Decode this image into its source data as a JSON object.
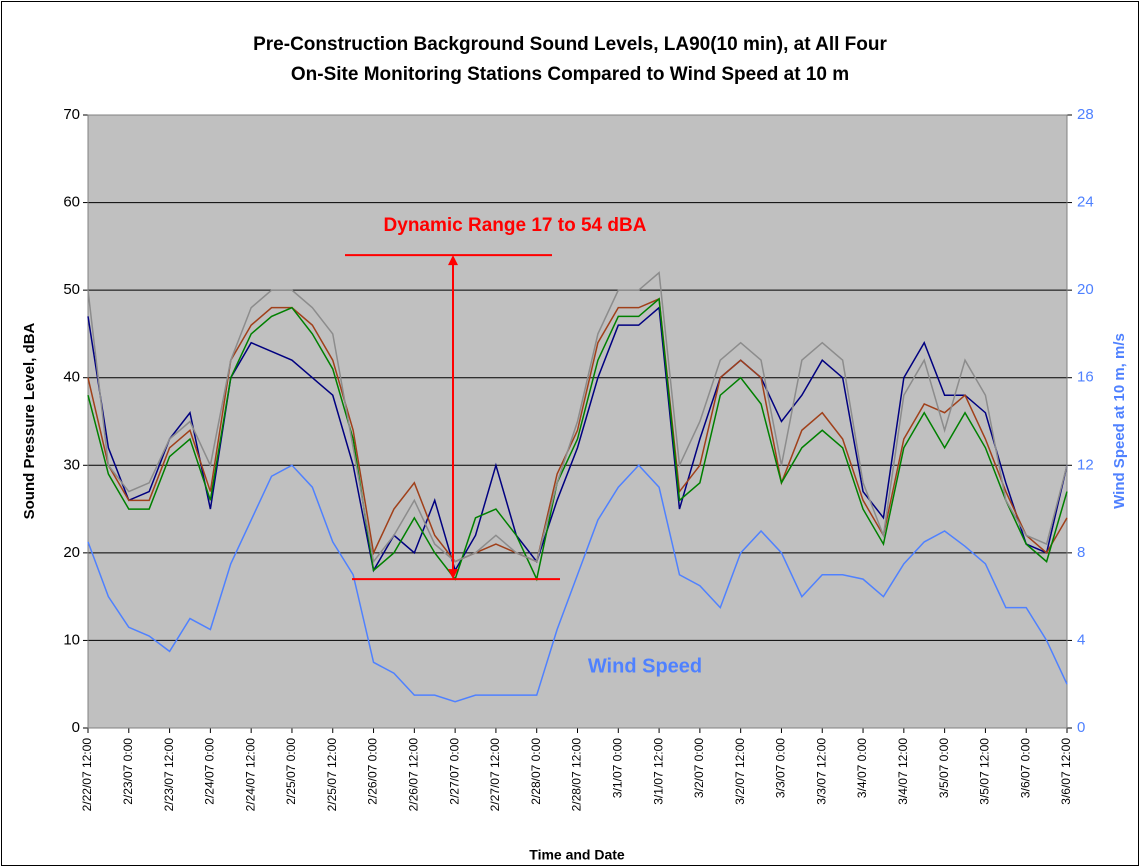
{
  "chart_data": {
    "type": "line",
    "title": [
      "Pre-Construction Background Sound Levels, LA90(10 min), at All Four",
      "On-Site Monitoring Stations Compared to Wind Speed at 10 m"
    ],
    "xlabel": "Time and Date",
    "ylabel": "Sound Pressure Level, dBA",
    "y2label": "Wind Speed at 10 m, m/s",
    "x": [
      "2/22/07 12:00",
      "2/22/07 18:00",
      "2/23/07 0:00",
      "2/23/07 6:00",
      "2/23/07 12:00",
      "2/23/07 18:00",
      "2/24/07 0:00",
      "2/24/07 6:00",
      "2/24/07 12:00",
      "2/24/07 18:00",
      "2/25/07 0:00",
      "2/25/07 6:00",
      "2/25/07 12:00",
      "2/25/07 18:00",
      "2/26/07 0:00",
      "2/26/07 6:00",
      "2/26/07 12:00",
      "2/26/07 18:00",
      "2/27/07 0:00",
      "2/27/07 6:00",
      "2/27/07 12:00",
      "2/27/07 18:00",
      "2/28/07 0:00",
      "2/28/07 6:00",
      "2/28/07 12:00",
      "2/28/07 18:00",
      "3/1/07 0:00",
      "3/1/07 6:00",
      "3/1/07 12:00",
      "3/1/07 18:00",
      "3/2/07 0:00",
      "3/2/07 6:00",
      "3/2/07 12:00",
      "3/2/07 18:00",
      "3/3/07 0:00",
      "3/3/07 6:00",
      "3/3/07 12:00",
      "3/3/07 18:00",
      "3/4/07 0:00",
      "3/4/07 6:00",
      "3/4/07 12:00",
      "3/4/07 18:00",
      "3/5/07 0:00",
      "3/5/07 6:00",
      "3/5/07 12:00",
      "3/5/07 18:00",
      "3/6/07 0:00",
      "3/6/07 6:00",
      "3/6/07 12:00"
    ],
    "xlim": [
      "2/22/07 12:00",
      "3/6/07 12:00"
    ],
    "xticks": [
      "2/22/07 12:00",
      "2/23/07 0:00",
      "2/23/07 12:00",
      "2/24/07 0:00",
      "2/24/07 12:00",
      "2/25/07 0:00",
      "2/25/07 12:00",
      "2/26/07 0:00",
      "2/26/07 12:00",
      "2/27/07 0:00",
      "2/27/07 12:00",
      "2/28/07 0:00",
      "2/28/07 12:00",
      "3/1/07 0:00",
      "3/1/07 12:00",
      "3/2/07 0:00",
      "3/2/07 12:00",
      "3/3/07 0:00",
      "3/3/07 12:00",
      "3/4/07 0:00",
      "3/4/07 12:00",
      "3/5/07 0:00",
      "3/5/07 12:00",
      "3/6/07 0:00",
      "3/6/07 12:00"
    ],
    "ylim": [
      0,
      70
    ],
    "yticks": [
      0,
      10,
      20,
      30,
      40,
      50,
      60,
      70
    ],
    "y2lim": [
      0,
      28
    ],
    "y2ticks": [
      0,
      4,
      8,
      12,
      16,
      20,
      24,
      28
    ],
    "grid": true,
    "series": [
      {
        "color": "#000080",
        "values": [
          47,
          32,
          26,
          27,
          33,
          36,
          25,
          40,
          44,
          43,
          42,
          40,
          38,
          30,
          18,
          22,
          20,
          26,
          18,
          22,
          30,
          22,
          19,
          26,
          32,
          40,
          46,
          46,
          48,
          25,
          33,
          40,
          42,
          40,
          35,
          38,
          42,
          40,
          27,
          24,
          40,
          44,
          38,
          38,
          36,
          28,
          21,
          20,
          30
        ]
      },
      {
        "color": "#a0401a",
        "values": [
          40,
          30,
          26,
          26,
          32,
          34,
          27,
          42,
          46,
          48,
          48,
          46,
          42,
          34,
          20,
          25,
          28,
          22,
          19,
          20,
          21,
          20,
          19,
          29,
          34,
          44,
          48,
          48,
          49,
          27,
          30,
          40,
          42,
          40,
          28,
          34,
          36,
          33,
          26,
          22,
          33,
          37,
          36,
          38,
          33,
          27,
          22,
          20,
          24
        ]
      },
      {
        "color": "#008000",
        "values": [
          38,
          29,
          25,
          25,
          31,
          33,
          26,
          40,
          45,
          47,
          48,
          45,
          41,
          33,
          18,
          20,
          24,
          20,
          17,
          24,
          25,
          22,
          17,
          28,
          33,
          42,
          47,
          47,
          49,
          26,
          28,
          38,
          40,
          37,
          28,
          32,
          34,
          32,
          25,
          21,
          32,
          36,
          32,
          36,
          32,
          26,
          21,
          19,
          27
        ]
      },
      {
        "color": "#8c8c8c",
        "values": [
          50,
          30,
          27,
          28,
          33,
          35,
          30,
          42,
          48,
          50,
          50,
          48,
          45,
          32,
          19,
          22,
          26,
          21,
          19,
          20,
          22,
          20,
          19,
          28,
          35,
          45,
          50,
          50,
          52,
          30,
          35,
          42,
          44,
          42,
          30,
          42,
          44,
          42,
          28,
          22,
          38,
          42,
          34,
          42,
          38,
          26,
          22,
          21,
          30
        ]
      },
      {
        "color": "#4f81ff",
        "axis": "y2",
        "values": [
          8.5,
          6,
          4.6,
          4.2,
          3.5,
          5,
          4.5,
          7.5,
          9.5,
          11.5,
          12,
          11,
          8.5,
          7,
          3,
          2.5,
          1.5,
          1.5,
          1.2,
          1.5,
          1.5,
          1.5,
          1.5,
          4.5,
          7,
          9.5,
          11,
          12,
          11,
          7,
          6.5,
          5.5,
          8,
          9,
          8,
          6,
          7,
          7,
          6.8,
          6,
          7.5,
          8.5,
          9,
          8.3,
          7.5,
          5.5,
          5.5,
          4,
          2
        ]
      }
    ],
    "annotations": [
      {
        "text": "Dynamic Range 17 to 54 dBA",
        "color": "#ff0000",
        "low": 17,
        "high": 54
      },
      {
        "text": "Wind Speed",
        "color": "#4f81ff"
      }
    ]
  }
}
